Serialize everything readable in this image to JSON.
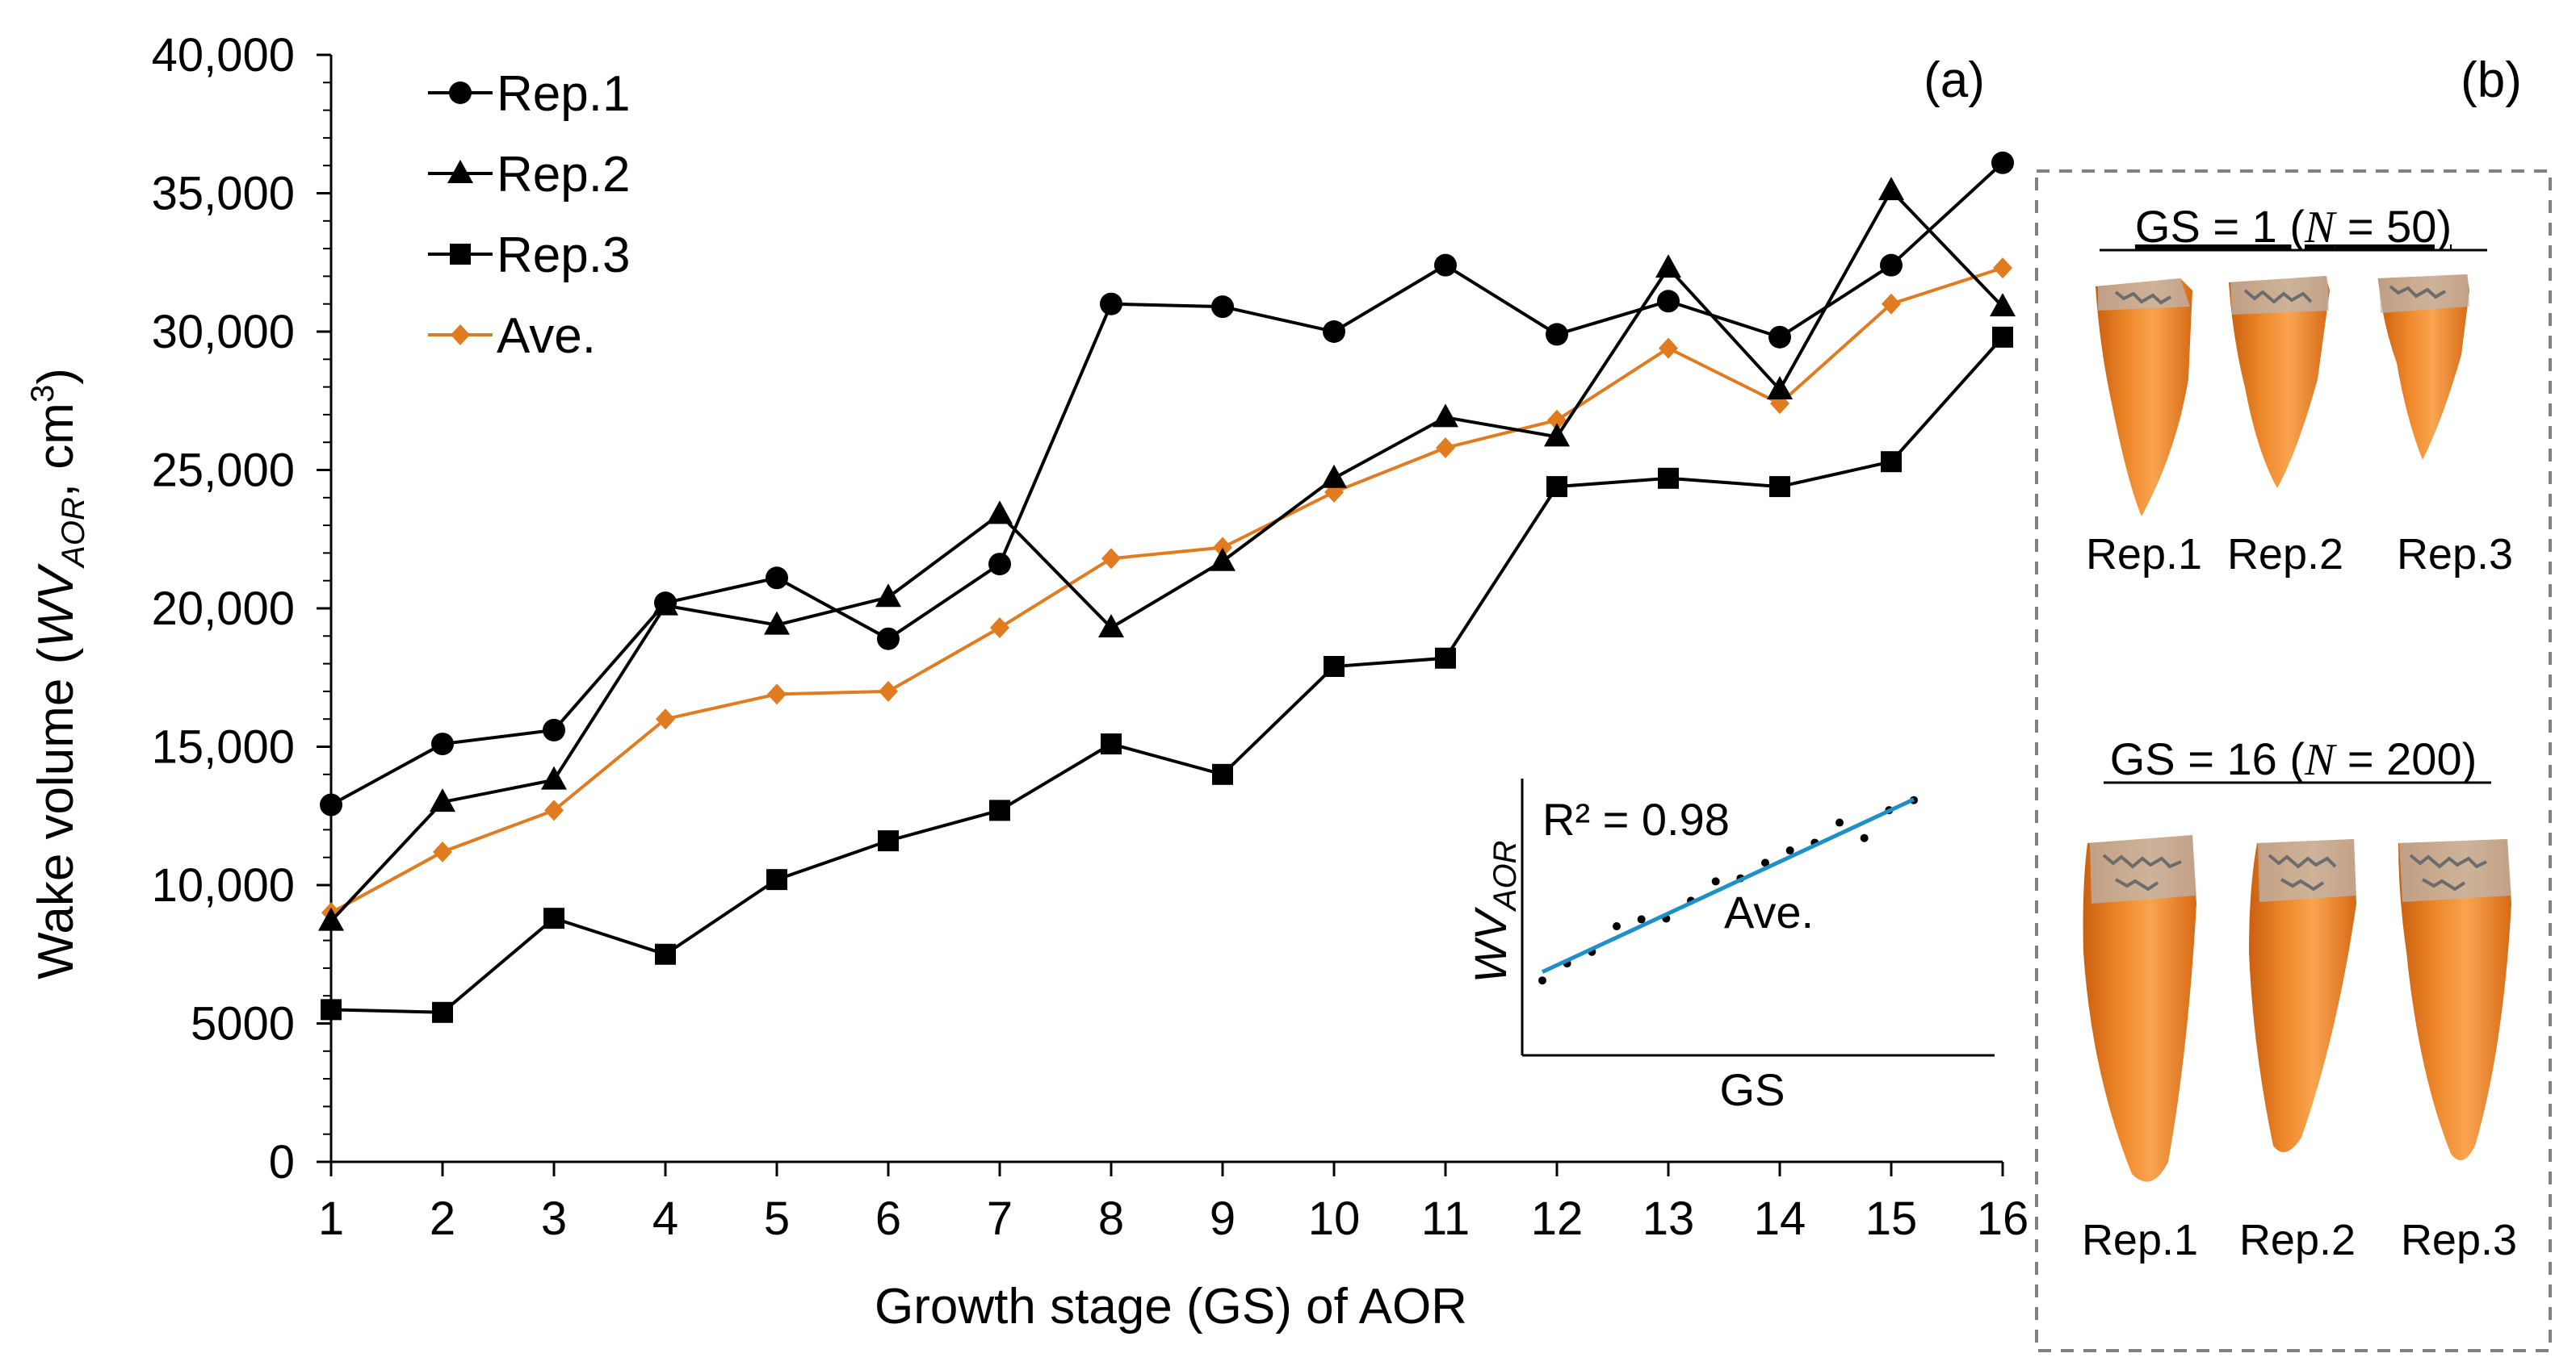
{
  "chart_data": {
    "type": "line",
    "ylabel_prefix": "Wake volume (",
    "ylabel_var": "WV",
    "ylabel_sub": "AOR",
    "ylabel_units": ", cm",
    "ylabel_sup": "3",
    "ylabel_suffix": ")",
    "xlabel": "Growth stage (GS) of AOR",
    "panel_a_label": "(a)",
    "panel_b_label": "(b)",
    "x": [
      1,
      2,
      3,
      4,
      5,
      6,
      7,
      8,
      9,
      10,
      11,
      12,
      13,
      14,
      15,
      16
    ],
    "xlim": [
      1,
      16
    ],
    "ylim": [
      0,
      40000
    ],
    "y_ticks": [
      0,
      5000,
      10000,
      15000,
      20000,
      25000,
      30000,
      35000,
      40000
    ],
    "y_tick_labels": [
      "0",
      "5000",
      "10,000",
      "15,000",
      "20,000",
      "25,000",
      "30,000",
      "35,000",
      "40,000"
    ],
    "series": [
      {
        "name": "Rep.1",
        "marker": "circle",
        "color": "#000000",
        "values": [
          12900,
          15100,
          15600,
          20200,
          21100,
          18900,
          21600,
          31000,
          30900,
          30000,
          32400,
          29900,
          31100,
          29800,
          32400,
          36100
        ]
      },
      {
        "name": "Rep.2",
        "marker": "triangle",
        "color": "#000000",
        "values": [
          8700,
          13000,
          13800,
          20100,
          19400,
          20400,
          23400,
          19300,
          21700,
          24700,
          26900,
          26200,
          32300,
          27900,
          35100,
          30900
        ]
      },
      {
        "name": "Rep.3",
        "marker": "square",
        "color": "#000000",
        "values": [
          5500,
          5400,
          8800,
          7500,
          10200,
          11600,
          12700,
          15100,
          14000,
          17900,
          18200,
          24400,
          24700,
          24400,
          25300,
          29800
        ]
      },
      {
        "name": "Ave.",
        "marker": "diamond",
        "color": "#E07B20",
        "values": [
          9000,
          11200,
          12700,
          16000,
          16900,
          17000,
          19300,
          21800,
          22200,
          24200,
          25800,
          26800,
          29400,
          27400,
          31000,
          32300
        ]
      }
    ],
    "legend_position": "top-left",
    "inset": {
      "r2_text": "R² = 0.98",
      "series_label": "Ave.",
      "xlabel": "GS",
      "ylabel_var": "WV",
      "ylabel_sub": "AOR",
      "line_color": "#1F8FC8",
      "points": [
        9000,
        11200,
        12700,
        16000,
        16900,
        17000,
        19300,
        21800,
        22200,
        24200,
        25800,
        26800,
        29400,
        27400,
        31000,
        32300
      ],
      "fit": {
        "start": 10100,
        "end": 32400
      }
    }
  },
  "panel_b": {
    "groups": [
      {
        "gs_text": "GS = 1 (",
        "n_var": "N",
        "n_text": " = 50)",
        "reps": [
          "Rep.1",
          "Rep.2",
          "Rep.3"
        ]
      },
      {
        "gs_text": "GS = 16 (",
        "n_var": "N",
        "n_text": " = 200)",
        "reps": [
          "Rep.1",
          "Rep.2",
          "Rep.3"
        ]
      }
    ],
    "shape_color": "#F07D1E",
    "shape_shadow": "#B85A0E"
  }
}
